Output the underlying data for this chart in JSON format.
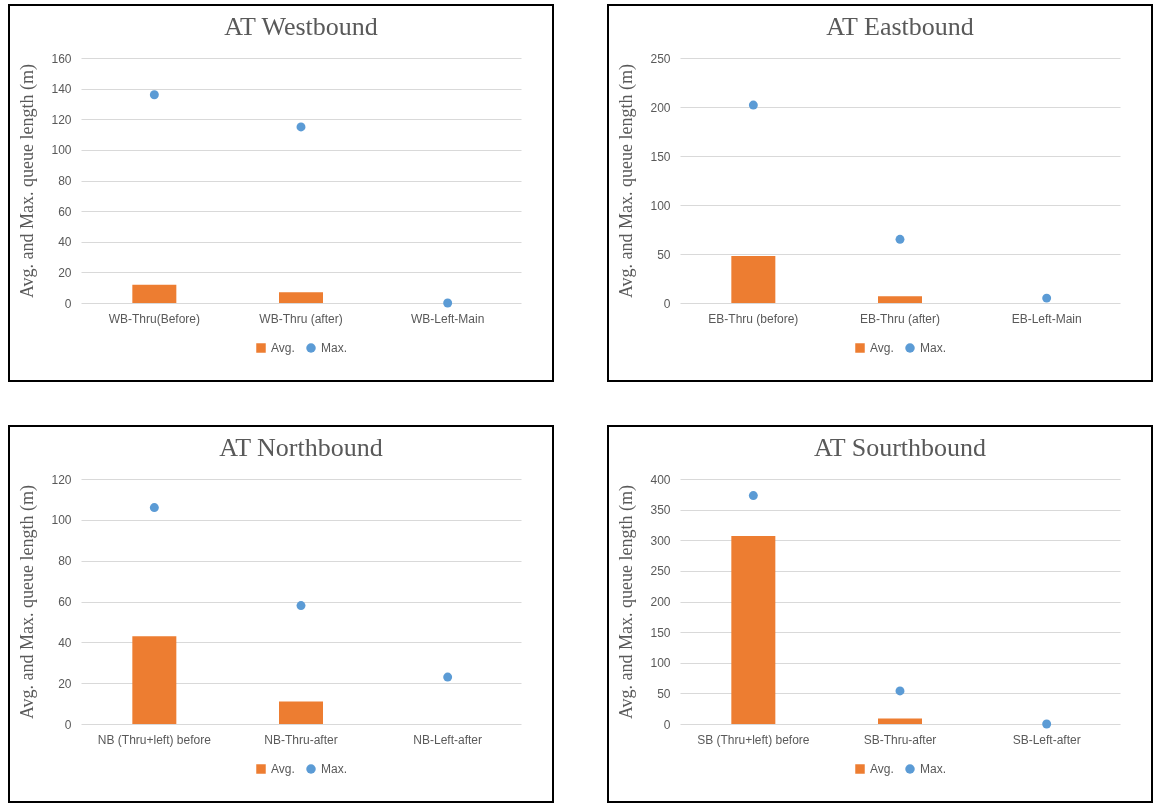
{
  "chart_data": [
    {
      "type": "bar",
      "title": "AT Westbound",
      "ylabel": "Avg. and Max. queue length (m)",
      "categories": [
        "WB-Thru(Before)",
        "WB-Thru (after)",
        "WB-Left-Main"
      ],
      "series": [
        {
          "name": "Avg.",
          "type": "bar",
          "color": "#ed7d31",
          "values": [
            12,
            7,
            0
          ]
        },
        {
          "name": "Max.",
          "type": "scatter",
          "color": "#5b9bd5",
          "values": [
            136,
            115,
            0
          ]
        }
      ],
      "ylim": [
        0,
        160
      ],
      "yticks": [
        0,
        20,
        40,
        60,
        80,
        100,
        120,
        140,
        160
      ],
      "grid": "y",
      "legend": "bottom",
      "marker": "circle"
    },
    {
      "type": "bar",
      "title": "AT Eastbound",
      "ylabel": "Avg. and Max. queue length (m)",
      "categories": [
        "EB-Thru (before)",
        "EB-Thru (after)",
        "EB-Left-Main"
      ],
      "series": [
        {
          "name": "Avg.",
          "type": "bar",
          "color": "#ed7d31",
          "values": [
            48,
            7,
            0
          ]
        },
        {
          "name": "Max.",
          "type": "scatter",
          "color": "#5b9bd5",
          "values": [
            202,
            65,
            5
          ]
        }
      ],
      "ylim": [
        0,
        250
      ],
      "yticks": [
        0,
        50,
        100,
        150,
        200,
        250
      ],
      "grid": "y",
      "legend": "bottom",
      "marker": "circle"
    },
    {
      "type": "bar",
      "title": "AT Northbound",
      "ylabel": "Avg. and Max. queue length (m)",
      "categories": [
        "NB (Thru+left) before",
        "NB-Thru-after",
        "NB-Left-after"
      ],
      "series": [
        {
          "name": "Avg.",
          "type": "bar",
          "color": "#ed7d31",
          "values": [
            43,
            11,
            0
          ]
        },
        {
          "name": "Max.",
          "type": "scatter",
          "color": "#5b9bd5",
          "values": [
            106,
            58,
            23
          ]
        }
      ],
      "ylim": [
        0,
        120
      ],
      "yticks": [
        0,
        20,
        40,
        60,
        80,
        100,
        120
      ],
      "grid": "y",
      "legend": "bottom",
      "marker": "circle"
    },
    {
      "type": "bar",
      "title": "AT Sourthbound",
      "ylabel": "Avg. and Max. queue length (m)",
      "categories": [
        "SB (Thru+left) before",
        "SB-Thru-after",
        "SB-Left-after"
      ],
      "series": [
        {
          "name": "Avg.",
          "type": "bar",
          "color": "#ed7d31",
          "values": [
            307,
            9,
            0
          ]
        },
        {
          "name": "Max.",
          "type": "scatter",
          "color": "#5b9bd5",
          "values": [
            373,
            54,
            0
          ]
        }
      ],
      "ylim": [
        0,
        400
      ],
      "yticks": [
        0,
        50,
        100,
        150,
        200,
        250,
        300,
        350,
        400
      ],
      "grid": "y",
      "legend": "bottom",
      "marker": "circle"
    }
  ]
}
